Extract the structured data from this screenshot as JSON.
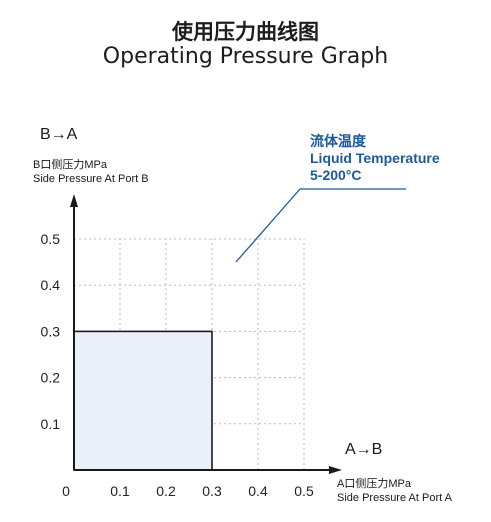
{
  "title_cn": "使用压力曲线图",
  "title_en": "Operating Pressure Graph",
  "y_direction": "B→A",
  "x_direction": "A→B",
  "y_axis": {
    "label_cn": "B口侧压力MPa",
    "label_en": "Side Pressure At Port B"
  },
  "x_axis": {
    "label_cn": "A口侧压力MPa",
    "label_en": "Side Pressure At Port A"
  },
  "annotation": {
    "cn": "流体温度",
    "en": "Liquid Temperature",
    "range": "5-200°C"
  },
  "colors": {
    "region_fill": "#eaf0f9",
    "region_stroke": "#1a1a1a",
    "annotation": "#1d5a9c",
    "grid": "#b8b8b8"
  },
  "chart_data": {
    "type": "area",
    "x_ticks": [
      "0",
      "0.1",
      "0.2",
      "0.3",
      "0.4",
      "0.5"
    ],
    "y_ticks": [
      "0.1",
      "0.2",
      "0.3",
      "0.4",
      "0.5"
    ],
    "xlim": [
      0,
      0.5
    ],
    "ylim": [
      0,
      0.5
    ],
    "grid": true,
    "region": {
      "x": [
        0,
        0.3
      ],
      "y": [
        0,
        0.3
      ]
    }
  }
}
